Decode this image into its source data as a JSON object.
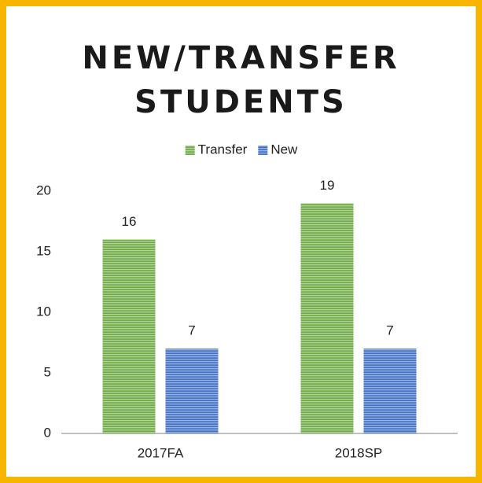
{
  "chart_data": {
    "type": "bar",
    "title": "NEW/TRANSFER STUDENTS",
    "categories": [
      "2017FA",
      "2018SP"
    ],
    "series": [
      {
        "name": "Transfer",
        "color": "#70ad47",
        "values": [
          16,
          19
        ]
      },
      {
        "name": "New",
        "color": "#4472c4",
        "values": [
          7,
          7
        ]
      }
    ],
    "ylim": [
      0,
      20
    ],
    "yticks": [
      0,
      5,
      10,
      15,
      20
    ],
    "grid": false,
    "legend": "top"
  }
}
